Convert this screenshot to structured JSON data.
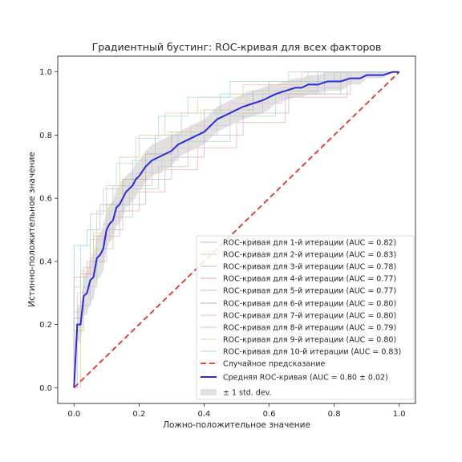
{
  "chart_data": {
    "type": "line",
    "title": "Градиентный бустинг: ROC-кривая для всех факторов",
    "xlabel": "Ложно-положительное значение",
    "ylabel": "Истинно-положительное значение",
    "xlim": [
      -0.05,
      1.05
    ],
    "ylim": [
      -0.05,
      1.05
    ],
    "xticks": [
      "0.0",
      "0.2",
      "0.4",
      "0.6",
      "0.8",
      "1.0"
    ],
    "yticks": [
      "0.0",
      "0.2",
      "0.4",
      "0.6",
      "0.8",
      "1.0"
    ],
    "grid": false,
    "legend_position": "lower-right",
    "series": [
      {
        "name": "ROC-кривая для 1-й итерации (AUC = 0.82)",
        "color": "#9dc7e2",
        "x": [
          0,
          0,
          0.01,
          0.01,
          0.04,
          0.04,
          0.08,
          0.08,
          0.12,
          0.12,
          0.18,
          0.18,
          0.25,
          0.25,
          0.33,
          0.33,
          0.45,
          0.45,
          0.6,
          0.6,
          0.8,
          0.8,
          1.0
        ],
        "y": [
          0,
          0.45,
          0.45,
          0.45,
          0.45,
          0.5,
          0.5,
          0.58,
          0.58,
          0.64,
          0.64,
          0.72,
          0.72,
          0.8,
          0.8,
          0.87,
          0.87,
          0.93,
          0.93,
          0.97,
          0.97,
          1.0,
          1.0
        ]
      },
      {
        "name": "ROC-кривая для 2-й итерации (AUC = 0.83)",
        "color": "#f4c28a",
        "x": [
          0,
          0.02,
          0.02,
          0.05,
          0.05,
          0.07,
          0.07,
          0.1,
          0.1,
          0.14,
          0.14,
          0.2,
          0.2,
          0.28,
          0.28,
          0.38,
          0.38,
          0.52,
          0.52,
          0.7,
          0.7,
          1.0
        ],
        "y": [
          0,
          0,
          0.3,
          0.3,
          0.47,
          0.47,
          0.56,
          0.56,
          0.64,
          0.64,
          0.73,
          0.73,
          0.8,
          0.8,
          0.87,
          0.87,
          0.92,
          0.92,
          0.96,
          0.96,
          1.0,
          1.0
        ]
      },
      {
        "name": "ROC-кривая для 3-й итерации (AUC = 0.78)",
        "color": "#a9d6a0",
        "x": [
          0,
          0,
          0.03,
          0.03,
          0.07,
          0.07,
          0.12,
          0.12,
          0.18,
          0.18,
          0.26,
          0.26,
          0.35,
          0.35,
          0.48,
          0.48,
          0.62,
          0.62,
          0.82,
          0.82,
          1.0
        ],
        "y": [
          0,
          0.18,
          0.18,
          0.32,
          0.32,
          0.44,
          0.44,
          0.54,
          0.54,
          0.63,
          0.63,
          0.7,
          0.7,
          0.78,
          0.78,
          0.86,
          0.86,
          0.93,
          0.93,
          1.0,
          1.0
        ]
      },
      {
        "name": "ROC-кривая для 4-й итерации (AUC = 0.77)",
        "color": "#f0a6a6",
        "x": [
          0,
          0,
          0.04,
          0.04,
          0.09,
          0.09,
          0.14,
          0.14,
          0.2,
          0.2,
          0.28,
          0.28,
          0.38,
          0.38,
          0.5,
          0.5,
          0.65,
          0.65,
          0.84,
          0.84,
          1.0
        ],
        "y": [
          0,
          0.35,
          0.35,
          0.4,
          0.4,
          0.48,
          0.48,
          0.56,
          0.56,
          0.62,
          0.62,
          0.69,
          0.69,
          0.76,
          0.76,
          0.84,
          0.84,
          0.92,
          0.92,
          1.0,
          1.0
        ]
      },
      {
        "name": "ROC-кривая для 5-й итерации (AUC = 0.77)",
        "color": "#c9b3dd",
        "x": [
          0,
          0.01,
          0.01,
          0.05,
          0.05,
          0.1,
          0.1,
          0.15,
          0.15,
          0.22,
          0.22,
          0.3,
          0.3,
          0.4,
          0.4,
          0.52,
          0.52,
          0.66,
          0.66,
          0.85,
          0.85,
          1.0
        ],
        "y": [
          0,
          0,
          0.26,
          0.26,
          0.4,
          0.4,
          0.5,
          0.5,
          0.58,
          0.58,
          0.66,
          0.66,
          0.73,
          0.73,
          0.8,
          0.8,
          0.87,
          0.87,
          0.93,
          0.93,
          1.0,
          1.0
        ]
      },
      {
        "name": "ROC-кривая для 6-й итерации (AUC = 0.80)",
        "color": "#c8a89e",
        "x": [
          0,
          0,
          0.02,
          0.02,
          0.06,
          0.06,
          0.1,
          0.1,
          0.15,
          0.15,
          0.22,
          0.22,
          0.3,
          0.3,
          0.4,
          0.4,
          0.55,
          0.55,
          0.75,
          0.75,
          1.0
        ],
        "y": [
          0,
          0.22,
          0.22,
          0.36,
          0.36,
          0.48,
          0.48,
          0.58,
          0.58,
          0.66,
          0.66,
          0.74,
          0.74,
          0.81,
          0.81,
          0.88,
          0.88,
          0.94,
          0.94,
          1.0,
          1.0
        ]
      },
      {
        "name": "ROC-кривая для 7-й итерации (AUC = 0.80)",
        "color": "#f3b9dc",
        "x": [
          0,
          0.01,
          0.01,
          0.05,
          0.05,
          0.09,
          0.09,
          0.13,
          0.13,
          0.19,
          0.19,
          0.27,
          0.27,
          0.36,
          0.36,
          0.48,
          0.48,
          0.64,
          0.64,
          0.82,
          0.82,
          1.0
        ],
        "y": [
          0,
          0,
          0.3,
          0.3,
          0.42,
          0.42,
          0.52,
          0.52,
          0.6,
          0.6,
          0.68,
          0.68,
          0.76,
          0.76,
          0.83,
          0.83,
          0.9,
          0.9,
          0.95,
          0.95,
          1.0,
          1.0
        ]
      },
      {
        "name": "ROC-кривая для 8-й итерации (AUC = 0.79)",
        "color": "#c4c4c4",
        "x": [
          0,
          0,
          0.03,
          0.03,
          0.07,
          0.07,
          0.11,
          0.11,
          0.17,
          0.17,
          0.24,
          0.24,
          0.32,
          0.32,
          0.44,
          0.44,
          0.58,
          0.58,
          0.77,
          0.77,
          1.0
        ],
        "y": [
          0,
          0.24,
          0.24,
          0.38,
          0.38,
          0.47,
          0.47,
          0.56,
          0.56,
          0.64,
          0.64,
          0.72,
          0.72,
          0.8,
          0.8,
          0.87,
          0.87,
          0.93,
          0.93,
          1.0,
          1.0
        ]
      },
      {
        "name": "ROC-кривая для 9-й итерации (AUC = 0.80)",
        "color": "#dcdc98",
        "x": [
          0,
          0,
          0.02,
          0.02,
          0.06,
          0.06,
          0.1,
          0.1,
          0.14,
          0.14,
          0.21,
          0.21,
          0.29,
          0.29,
          0.39,
          0.39,
          0.53,
          0.53,
          0.72,
          0.72,
          1.0
        ],
        "y": [
          0,
          0.2,
          0.2,
          0.37,
          0.37,
          0.49,
          0.49,
          0.57,
          0.57,
          0.65,
          0.65,
          0.73,
          0.73,
          0.81,
          0.81,
          0.88,
          0.88,
          0.94,
          0.94,
          1.0,
          1.0
        ]
      },
      {
        "name": "ROC-кривая для 10-й итерации (AUC = 0.83)",
        "color": "#9ed9e2",
        "x": [
          0,
          0,
          0.02,
          0.02,
          0.05,
          0.05,
          0.09,
          0.09,
          0.13,
          0.13,
          0.19,
          0.19,
          0.26,
          0.26,
          0.35,
          0.35,
          0.48,
          0.48,
          0.66,
          0.66,
          1.0
        ],
        "y": [
          0,
          0.32,
          0.32,
          0.45,
          0.45,
          0.55,
          0.55,
          0.63,
          0.63,
          0.71,
          0.71,
          0.79,
          0.79,
          0.86,
          0.86,
          0.92,
          0.92,
          0.97,
          0.97,
          1.0,
          1.0
        ]
      },
      {
        "name": "Случайное предсказание",
        "color": "#e8312b",
        "dashed": true,
        "x": [
          0,
          1
        ],
        "y": [
          0,
          1
        ]
      },
      {
        "name": "Средняя ROC-кривая (AUC = 0.80 ± 0.02)",
        "color": "#2a2ae0",
        "x": [
          0,
          0.01,
          0.02,
          0.03,
          0.04,
          0.05,
          0.06,
          0.07,
          0.08,
          0.09,
          0.1,
          0.11,
          0.12,
          0.13,
          0.14,
          0.15,
          0.16,
          0.17,
          0.18,
          0.19,
          0.2,
          0.22,
          0.24,
          0.26,
          0.28,
          0.3,
          0.32,
          0.34,
          0.36,
          0.38,
          0.4,
          0.42,
          0.44,
          0.46,
          0.48,
          0.5,
          0.52,
          0.55,
          0.58,
          0.6,
          0.62,
          0.65,
          0.68,
          0.7,
          0.72,
          0.75,
          0.78,
          0.8,
          0.82,
          0.85,
          0.88,
          0.9,
          0.92,
          0.95,
          0.98,
          1.0
        ],
        "y": [
          0,
          0.2,
          0.2,
          0.29,
          0.3,
          0.34,
          0.35,
          0.41,
          0.42,
          0.44,
          0.5,
          0.52,
          0.53,
          0.57,
          0.58,
          0.6,
          0.62,
          0.63,
          0.64,
          0.66,
          0.67,
          0.7,
          0.72,
          0.73,
          0.74,
          0.75,
          0.77,
          0.78,
          0.79,
          0.8,
          0.81,
          0.83,
          0.85,
          0.86,
          0.87,
          0.88,
          0.89,
          0.9,
          0.91,
          0.92,
          0.93,
          0.94,
          0.95,
          0.95,
          0.96,
          0.96,
          0.97,
          0.97,
          0.97,
          0.98,
          0.98,
          0.99,
          0.99,
          0.99,
          1.0,
          1.0
        ]
      }
    ],
    "std_band": {
      "name": "± 1 std. dev.",
      "color": "#c8c8c8",
      "upper": [
        0,
        0.25,
        0.26,
        0.35,
        0.37,
        0.41,
        0.42,
        0.48,
        0.49,
        0.51,
        0.56,
        0.58,
        0.59,
        0.63,
        0.64,
        0.66,
        0.67,
        0.68,
        0.69,
        0.71,
        0.72,
        0.75,
        0.77,
        0.78,
        0.79,
        0.8,
        0.81,
        0.82,
        0.83,
        0.84,
        0.85,
        0.87,
        0.89,
        0.9,
        0.91,
        0.92,
        0.93,
        0.94,
        0.95,
        0.96,
        0.96,
        0.97,
        0.98,
        0.98,
        0.99,
        0.99,
        1.0,
        1.0,
        1.0,
        1.0,
        1.0,
        1.0,
        1.0,
        1.0,
        1.0,
        1.0
      ],
      "lower": [
        0,
        0.15,
        0.14,
        0.23,
        0.23,
        0.27,
        0.28,
        0.34,
        0.35,
        0.37,
        0.44,
        0.46,
        0.47,
        0.51,
        0.52,
        0.54,
        0.57,
        0.58,
        0.59,
        0.61,
        0.62,
        0.65,
        0.67,
        0.68,
        0.69,
        0.7,
        0.73,
        0.74,
        0.75,
        0.76,
        0.77,
        0.79,
        0.81,
        0.82,
        0.83,
        0.84,
        0.85,
        0.86,
        0.87,
        0.88,
        0.9,
        0.91,
        0.92,
        0.92,
        0.93,
        0.93,
        0.94,
        0.94,
        0.94,
        0.96,
        0.96,
        0.98,
        0.98,
        0.98,
        1.0,
        1.0
      ]
    }
  }
}
